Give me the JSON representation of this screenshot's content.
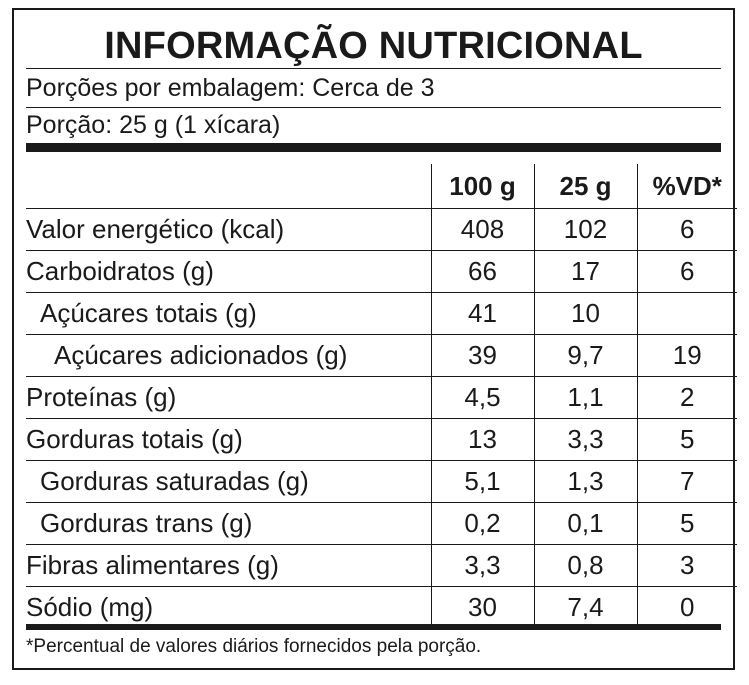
{
  "title": "INFORMAÇÃO NUTRICIONAL",
  "servings_per_package": "Porções por embalagem: Cerca de 3",
  "serving_size": "Porção: 25 g (1 xícara)",
  "headers": [
    "",
    "100 g",
    "25 g",
    "%VD*"
  ],
  "rows": [
    {
      "name": "Valor energético (kcal)",
      "per100": "408",
      "per25": "102",
      "vd": "6"
    },
    {
      "name": "Carboidratos (g)",
      "per100": "66",
      "per25": "17",
      "vd": "6"
    },
    {
      "name": "Açúcares totais (g)",
      "per100": "41",
      "per25": "10",
      "vd": ""
    },
    {
      "name": "Açúcares adicionados (g)",
      "per100": "39",
      "per25": "9,7",
      "vd": "19"
    },
    {
      "name": "Proteínas (g)",
      "per100": "4,5",
      "per25": "1,1",
      "vd": "2"
    },
    {
      "name": "Gorduras totais (g)",
      "per100": "13",
      "per25": "3,3",
      "vd": "5"
    },
    {
      "name": "Gorduras saturadas (g)",
      "per100": "5,1",
      "per25": "1,3",
      "vd": "7"
    },
    {
      "name": "Gorduras trans (g)",
      "per100": "0,2",
      "per25": "0,1",
      "vd": "5"
    },
    {
      "name": "Fibras alimentares (g)",
      "per100": "3,3",
      "per25": "0,8",
      "vd": "3"
    },
    {
      "name": "Sódio (mg)",
      "per100": "30",
      "per25": "7,4",
      "vd": "0"
    }
  ],
  "footnote": "*Percentual de valores diários fornecidos pela porção."
}
